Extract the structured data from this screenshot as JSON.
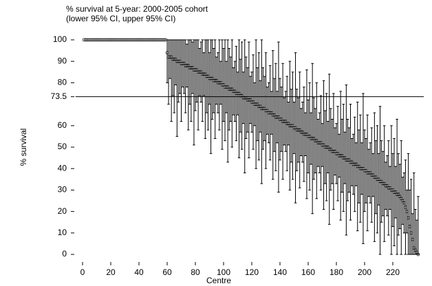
{
  "chart_data": {
    "type": "errorbar",
    "title": "% survival at 5-year: 2000-2005 cohort",
    "subtitle": "(lower 95% CI, upper 95% CI)",
    "x_label": "Centre",
    "y_label": "% survival",
    "xlim": [
      -5,
      242
    ],
    "ylim": [
      -3,
      103
    ],
    "xticks": [
      0,
      20,
      40,
      60,
      80,
      100,
      120,
      140,
      160,
      180,
      200,
      220
    ],
    "yticks": [
      0,
      10,
      20,
      30,
      40,
      50,
      60,
      73.5,
      80,
      90,
      100
    ],
    "reference_line": 73.5,
    "color": "#000000",
    "x": [
      1,
      2,
      3,
      4,
      5,
      6,
      7,
      8,
      9,
      10,
      11,
      12,
      13,
      14,
      15,
      16,
      17,
      18,
      19,
      20,
      21,
      22,
      23,
      24,
      25,
      26,
      27,
      28,
      29,
      30,
      31,
      32,
      33,
      34,
      35,
      36,
      37,
      38,
      39,
      40,
      41,
      42,
      43,
      44,
      45,
      46,
      47,
      48,
      49,
      50,
      51,
      52,
      53,
      54,
      55,
      56,
      57,
      58,
      59,
      60,
      61,
      62,
      63,
      64,
      65,
      66,
      67,
      68,
      69,
      70,
      71,
      72,
      73,
      74,
      75,
      76,
      77,
      78,
      79,
      80,
      81,
      82,
      83,
      84,
      85,
      86,
      87,
      88,
      89,
      90,
      91,
      92,
      93,
      94,
      95,
      96,
      97,
      98,
      99,
      100,
      101,
      102,
      103,
      104,
      105,
      106,
      107,
      108,
      109,
      110,
      111,
      112,
      113,
      114,
      115,
      116,
      117,
      118,
      119,
      120,
      121,
      122,
      123,
      124,
      125,
      126,
      127,
      128,
      129,
      130,
      131,
      132,
      133,
      134,
      135,
      136,
      137,
      138,
      139,
      140,
      141,
      142,
      143,
      144,
      145,
      146,
      147,
      148,
      149,
      150,
      151,
      152,
      153,
      154,
      155,
      156,
      157,
      158,
      159,
      160,
      161,
      162,
      163,
      164,
      165,
      166,
      167,
      168,
      169,
      170,
      171,
      172,
      173,
      174,
      175,
      176,
      177,
      178,
      179,
      180,
      181,
      182,
      183,
      184,
      185,
      186,
      187,
      188,
      189,
      190,
      191,
      192,
      193,
      194,
      195,
      196,
      197,
      198,
      199,
      200,
      201,
      202,
      203,
      204,
      205,
      206,
      207,
      208,
      209,
      210,
      211,
      212,
      213,
      214,
      215,
      216,
      217,
      218,
      219,
      220,
      221,
      222,
      223,
      224,
      225,
      226,
      227,
      228,
      229,
      230,
      231,
      232,
      233,
      234,
      235,
      236,
      237,
      238
    ],
    "values": [
      100,
      100,
      100,
      100,
      100,
      100,
      100,
      100,
      100,
      100,
      100,
      100,
      100,
      100,
      100,
      100,
      100,
      100,
      100,
      100,
      100,
      100,
      100,
      100,
      100,
      100,
      100,
      100,
      100,
      100,
      100,
      100,
      100,
      100,
      100,
      100,
      100,
      100,
      100,
      100,
      100,
      100,
      100,
      100,
      100,
      100,
      100,
      100,
      100,
      100,
      100,
      100,
      100,
      100,
      100,
      100,
      100,
      100,
      100,
      94,
      92,
      92,
      92,
      91,
      91,
      91,
      90,
      90,
      90,
      89,
      89,
      89,
      88,
      88,
      88,
      87,
      87,
      87,
      86,
      86,
      86,
      85,
      85,
      85,
      84,
      84,
      84,
      83,
      83,
      82,
      82,
      82,
      81,
      81,
      81,
      80,
      80,
      80,
      79,
      79,
      78,
      78,
      78,
      77,
      77,
      77,
      76,
      76,
      75,
      75,
      75,
      74,
      74,
      73,
      73,
      73,
      72,
      72,
      72,
      71,
      71,
      70,
      70,
      70,
      69,
      69,
      68,
      68,
      68,
      67,
      67,
      66,
      66,
      66,
      65,
      65,
      64,
      64,
      64,
      63,
      63,
      62,
      62,
      62,
      61,
      61,
      60,
      60,
      60,
      59,
      59,
      58,
      58,
      58,
      57,
      57,
      56,
      56,
      56,
      55,
      55,
      54,
      54,
      54,
      53,
      53,
      52,
      52,
      52,
      51,
      51,
      50,
      50,
      50,
      49,
      49,
      48,
      48,
      48,
      47,
      47,
      46,
      46,
      46,
      45,
      45,
      44,
      44,
      44,
      43,
      43,
      42,
      42,
      42,
      41,
      41,
      40,
      40,
      40,
      39,
      39,
      38,
      38,
      38,
      37,
      37,
      36,
      36,
      35,
      35,
      34,
      34,
      33,
      33,
      32,
      32,
      31,
      31,
      30,
      30,
      29,
      29,
      28,
      28,
      27,
      26,
      25,
      24,
      22,
      20,
      17,
      13,
      10,
      7,
      3,
      2,
      1,
      0
    ],
    "lower": [
      null,
      null,
      null,
      null,
      null,
      null,
      null,
      null,
      null,
      null,
      null,
      null,
      null,
      null,
      null,
      null,
      null,
      null,
      null,
      null,
      null,
      null,
      null,
      null,
      null,
      null,
      null,
      null,
      null,
      null,
      null,
      null,
      null,
      null,
      null,
      null,
      null,
      null,
      null,
      null,
      null,
      null,
      null,
      null,
      null,
      null,
      null,
      null,
      null,
      null,
      null,
      null,
      null,
      null,
      null,
      null,
      null,
      null,
      null,
      80,
      70,
      82,
      62,
      74,
      66,
      79,
      55,
      71,
      75,
      62,
      78,
      75,
      66,
      78,
      58,
      70,
      62,
      75,
      51,
      67,
      71,
      58,
      74,
      71,
      62,
      74,
      54,
      66,
      58,
      70,
      47,
      63,
      66,
      54,
      70,
      66,
      58,
      70,
      49,
      62,
      53,
      66,
      43,
      58,
      62,
      50,
      65,
      62,
      53,
      65,
      45,
      57,
      49,
      61,
      38,
      54,
      57,
      45,
      61,
      57,
      49,
      60,
      40,
      53,
      44,
      57,
      33,
      49,
      53,
      40,
      56,
      52,
      44,
      56,
      35,
      48,
      39,
      52,
      29,
      44,
      48,
      35,
      51,
      48,
      39,
      51,
      30,
      43,
      35,
      47,
      24,
      39,
      43,
      31,
      46,
      43,
      34,
      46,
      26,
      38,
      30,
      42,
      19,
      35,
      38,
      26,
      41,
      38,
      30,
      41,
      21,
      33,
      25,
      38,
      14,
      30,
      33,
      21,
      37,
      33,
      25,
      36,
      16,
      29,
      20,
      33,
      9,
      25,
      29,
      16,
      32,
      28,
      20,
      32,
      11,
      24,
      15,
      28,
      5,
      20,
      24,
      11,
      27,
      24,
      15,
      27,
      6,
      19,
      10,
      23,
      0,
      15,
      18,
      6,
      21,
      18,
      9,
      21,
      0,
      13,
      4,
      17,
      0,
      9,
      12,
      0,
      14,
      10,
      0,
      10,
      0,
      0,
      0,
      0,
      0,
      0,
      0,
      0
    ],
    "upper": [
      null,
      null,
      null,
      null,
      null,
      null,
      null,
      null,
      null,
      null,
      null,
      null,
      null,
      null,
      null,
      null,
      null,
      null,
      null,
      null,
      null,
      null,
      null,
      null,
      null,
      null,
      null,
      null,
      null,
      null,
      null,
      null,
      null,
      null,
      null,
      null,
      null,
      null,
      null,
      null,
      null,
      null,
      null,
      null,
      null,
      null,
      null,
      null,
      null,
      null,
      null,
      null,
      null,
      null,
      null,
      null,
      null,
      null,
      null,
      100,
      100,
      100,
      100,
      100,
      100,
      100,
      100,
      100,
      100,
      100,
      100,
      100,
      100,
      98,
      100,
      100,
      100,
      99,
      100,
      100,
      100,
      100,
      96,
      99,
      100,
      94,
      100,
      100,
      100,
      94,
      100,
      100,
      96,
      100,
      92,
      94,
      100,
      90,
      100,
      96,
      100,
      90,
      100,
      96,
      92,
      100,
      87,
      90,
      97,
      85,
      100,
      91,
      99,
      85,
      100,
      92,
      87,
      99,
      83,
      85,
      93,
      80,
      100,
      87,
      94,
      81,
      100,
      87,
      83,
      94,
      78,
      80,
      88,
      76,
      95,
      82,
      89,
      76,
      99,
      82,
      78,
      89,
      73,
      76,
      83,
      71,
      90,
      77,
      85,
      71,
      94,
      77,
      73,
      85,
      68,
      71,
      78,
      66,
      86,
      72,
      80,
      66,
      89,
      73,
      68,
      80,
      63,
      66,
      74,
      61,
      81,
      67,
      75,
      62,
      84,
      68,
      63,
      75,
      59,
      61,
      69,
      56,
      76,
      63,
      70,
      57,
      79,
      63,
      59,
      70,
      54,
      56,
      64,
      52,
      71,
      58,
      65,
      52,
      75,
      58,
      54,
      65,
      49,
      52,
      59,
      47,
      66,
      53,
      60,
      47,
      69,
      53,
      48,
      60,
      43,
      46,
      53,
      41,
      60,
      47,
      54,
      41,
      63,
      47,
      42,
      53,
      36,
      38,
      44,
      30,
      47,
      30,
      35,
      19,
      38,
      21,
      16,
      27
    ]
  }
}
